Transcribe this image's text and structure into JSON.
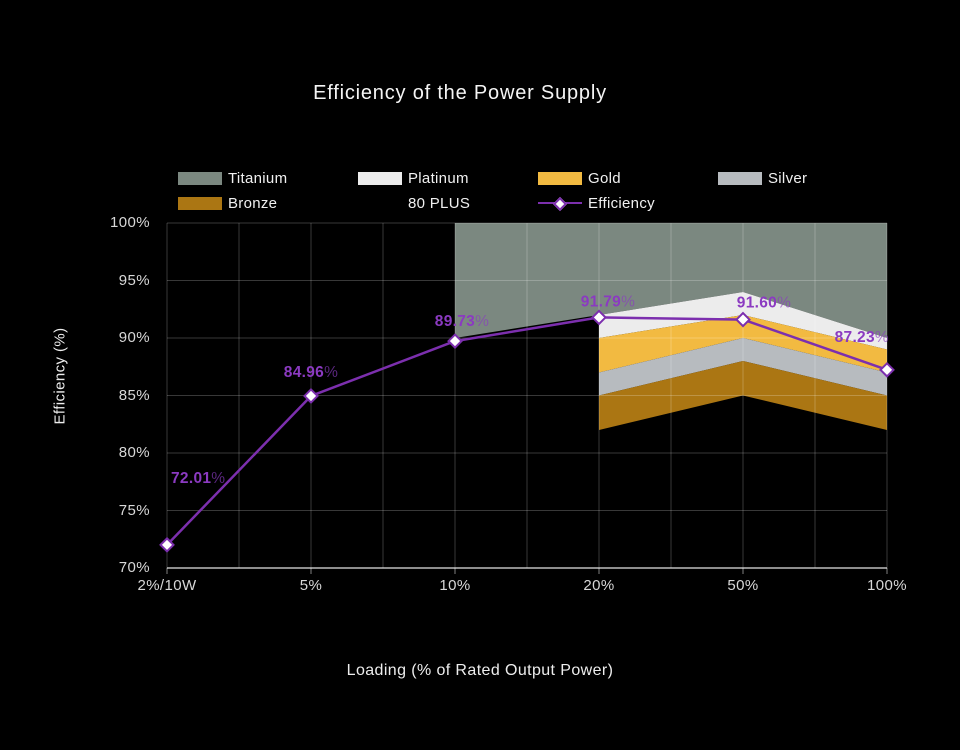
{
  "chart_data": {
    "type": "line+area",
    "title": "Efficiency of the Power Supply",
    "xlabel": "Loading (% of Rated Output Power)",
    "ylabel": "Efficiency (%)",
    "categories": [
      "2%/10W",
      "5%",
      "10%",
      "20%",
      "50%",
      "100%"
    ],
    "ylim": [
      70,
      100
    ],
    "yticks": [
      "100%",
      "95%",
      "90%",
      "85%",
      "80%",
      "75%",
      "70%"
    ],
    "ytick_values": [
      100,
      95,
      90,
      85,
      80,
      75,
      70
    ],
    "grid": true,
    "legend_position": "top",
    "series": [
      {
        "name": "Efficiency",
        "type": "line",
        "color": "#7c2fae",
        "marker": "diamond",
        "marker_fill": "#ffffff",
        "values": [
          72.01,
          84.96,
          89.73,
          91.79,
          91.6,
          87.23
        ],
        "point_labels": [
          "72.01",
          "84.96",
          "89.73",
          "91.79",
          "91.60",
          "87.23"
        ],
        "label_suffix": "%",
        "label_color": "#8b3ac1"
      }
    ],
    "bands": [
      {
        "name": "Titanium",
        "color": "#7b8880",
        "category_idx": [
          2,
          3,
          4,
          5
        ],
        "bottom": [
          90,
          92,
          94,
          90
        ],
        "top": [
          100,
          100,
          100,
          100
        ]
      },
      {
        "name": "Platinum",
        "color": "#ececec",
        "category_idx": [
          3,
          4,
          5
        ],
        "bottom": [
          90,
          92,
          89
        ],
        "top": [
          92,
          94,
          90
        ]
      },
      {
        "name": "Gold",
        "color": "#f2ba41",
        "category_idx": [
          3,
          4,
          5
        ],
        "bottom": [
          87,
          90,
          87
        ],
        "top": [
          90,
          92,
          89
        ]
      },
      {
        "name": "Silver",
        "color": "#b7bbbf",
        "category_idx": [
          3,
          4,
          5
        ],
        "bottom": [
          85,
          88,
          85
        ],
        "top": [
          87,
          90,
          87
        ]
      },
      {
        "name": "Bronze",
        "color": "#ab7613",
        "category_idx": [
          3,
          4,
          5
        ],
        "bottom": [
          82,
          85,
          82
        ],
        "top": [
          85,
          88,
          85
        ]
      }
    ],
    "legend": {
      "rows": [
        [
          {
            "label": "Titanium",
            "swatch": "#7b8880",
            "type": "box"
          },
          {
            "label": "Platinum",
            "swatch": "#ececec",
            "type": "box"
          },
          {
            "label": "Gold",
            "swatch": "#f2ba41",
            "type": "box"
          },
          {
            "label": "Silver",
            "swatch": "#b7bbbf",
            "type": "box"
          }
        ],
        [
          {
            "label": "Bronze",
            "swatch": "#ab7613",
            "type": "box"
          },
          {
            "label": "80 PLUS",
            "swatch": null,
            "type": "none"
          },
          {
            "label": "Efficiency",
            "swatch": "#7c2fae",
            "type": "line-marker"
          }
        ]
      ]
    },
    "colors": {
      "background": "#000000",
      "grid": "rgba(255,255,255,0.22)",
      "axis": "rgba(255,255,255,0.5)",
      "tick_text": "#d8d8d8",
      "title_text": "#f5f5f5"
    }
  }
}
